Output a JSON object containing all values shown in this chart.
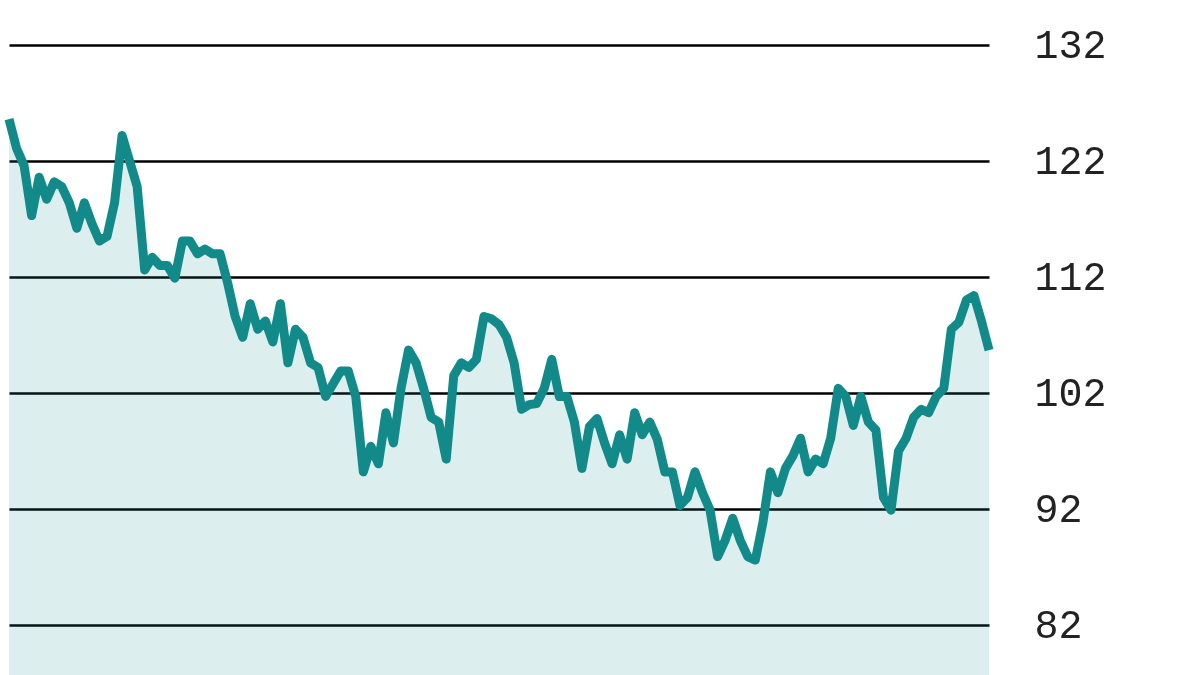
{
  "chart_data": {
    "type": "area",
    "categories": [
      null,
      null,
      null,
      null,
      null,
      null,
      null,
      null,
      null,
      null,
      null,
      null,
      null,
      null,
      null,
      null,
      null,
      null,
      null,
      null,
      null,
      null,
      null,
      null,
      null,
      null,
      null,
      null,
      null,
      null,
      null,
      null,
      null,
      null,
      null,
      null,
      null,
      null,
      null,
      null,
      null,
      null,
      null,
      null,
      null,
      null,
      null,
      null,
      null,
      null,
      null,
      null,
      null,
      null,
      null,
      null,
      null,
      null,
      null,
      null,
      null,
      null,
      null,
      null,
      null,
      null,
      null,
      null,
      null,
      null,
      null,
      null,
      null,
      null,
      null,
      null,
      null,
      null,
      null,
      null,
      null,
      null,
      null,
      null,
      null,
      null,
      null,
      null,
      null,
      null,
      null,
      null,
      null,
      null,
      null,
      null,
      null,
      null,
      null,
      null,
      null,
      null,
      null,
      null,
      null,
      null,
      null,
      null,
      null,
      null,
      null,
      null,
      null,
      null,
      null,
      null,
      null,
      null,
      null,
      null,
      null,
      null,
      null,
      null,
      null,
      null,
      null,
      null,
      null,
      null,
      null
    ],
    "series": [
      {
        "color": "#138a8a",
        "values": [
          125.6,
          123.1,
          121.6,
          117.3,
          120.6,
          118.7,
          120.2,
          119.8,
          118.4,
          116.2,
          118.4,
          116.6,
          115.1,
          115.5,
          118.4,
          124.2,
          122,
          119.8,
          112.6,
          113.7,
          113,
          113,
          111.9,
          115.1,
          115.1,
          114,
          114.4,
          114,
          114,
          111.5,
          108.6,
          106.8,
          109.7,
          107.5,
          108.2,
          106.4,
          109.7,
          104.6,
          107.5,
          106.8,
          104.6,
          104.2,
          101.7,
          102.8,
          103.9,
          103.9,
          101.7,
          95.2,
          97.4,
          95.9,
          100.3,
          97.7,
          102.4,
          105.7,
          104.6,
          102.4,
          99.9,
          99.5,
          96.3,
          103.5,
          104.6,
          104.2,
          104.9,
          108.6,
          108.4,
          107.9,
          106.8,
          104.6,
          100.6,
          101,
          101.1,
          102.4,
          104.9,
          101.7,
          101.7,
          99.5,
          95.5,
          99.1,
          99.8,
          97.7,
          95.9,
          98.4,
          96.3,
          100.3,
          98.4,
          99.5,
          98,
          95.2,
          95.2,
          92.3,
          93,
          95.2,
          93.4,
          91.9,
          87.9,
          89.3,
          91.2,
          89.3,
          87.9,
          87.6,
          90.8,
          95.2,
          93.4,
          95.5,
          96.6,
          98.1,
          95.2,
          96.3,
          95.9,
          98.1,
          102.4,
          101.7,
          99.2,
          101.7,
          99.5,
          98.8,
          93,
          91.9,
          97,
          98.1,
          99.9,
          100.6,
          100.3,
          101.7,
          102.4,
          107.5,
          108.1,
          110,
          110.4,
          108.2,
          105.7
        ]
      }
    ],
    "ylim": [
      82,
      132
    ],
    "yticks": [
      82,
      92,
      102,
      112,
      122,
      132
    ],
    "grid": "y",
    "tick_labels": "y"
  }
}
